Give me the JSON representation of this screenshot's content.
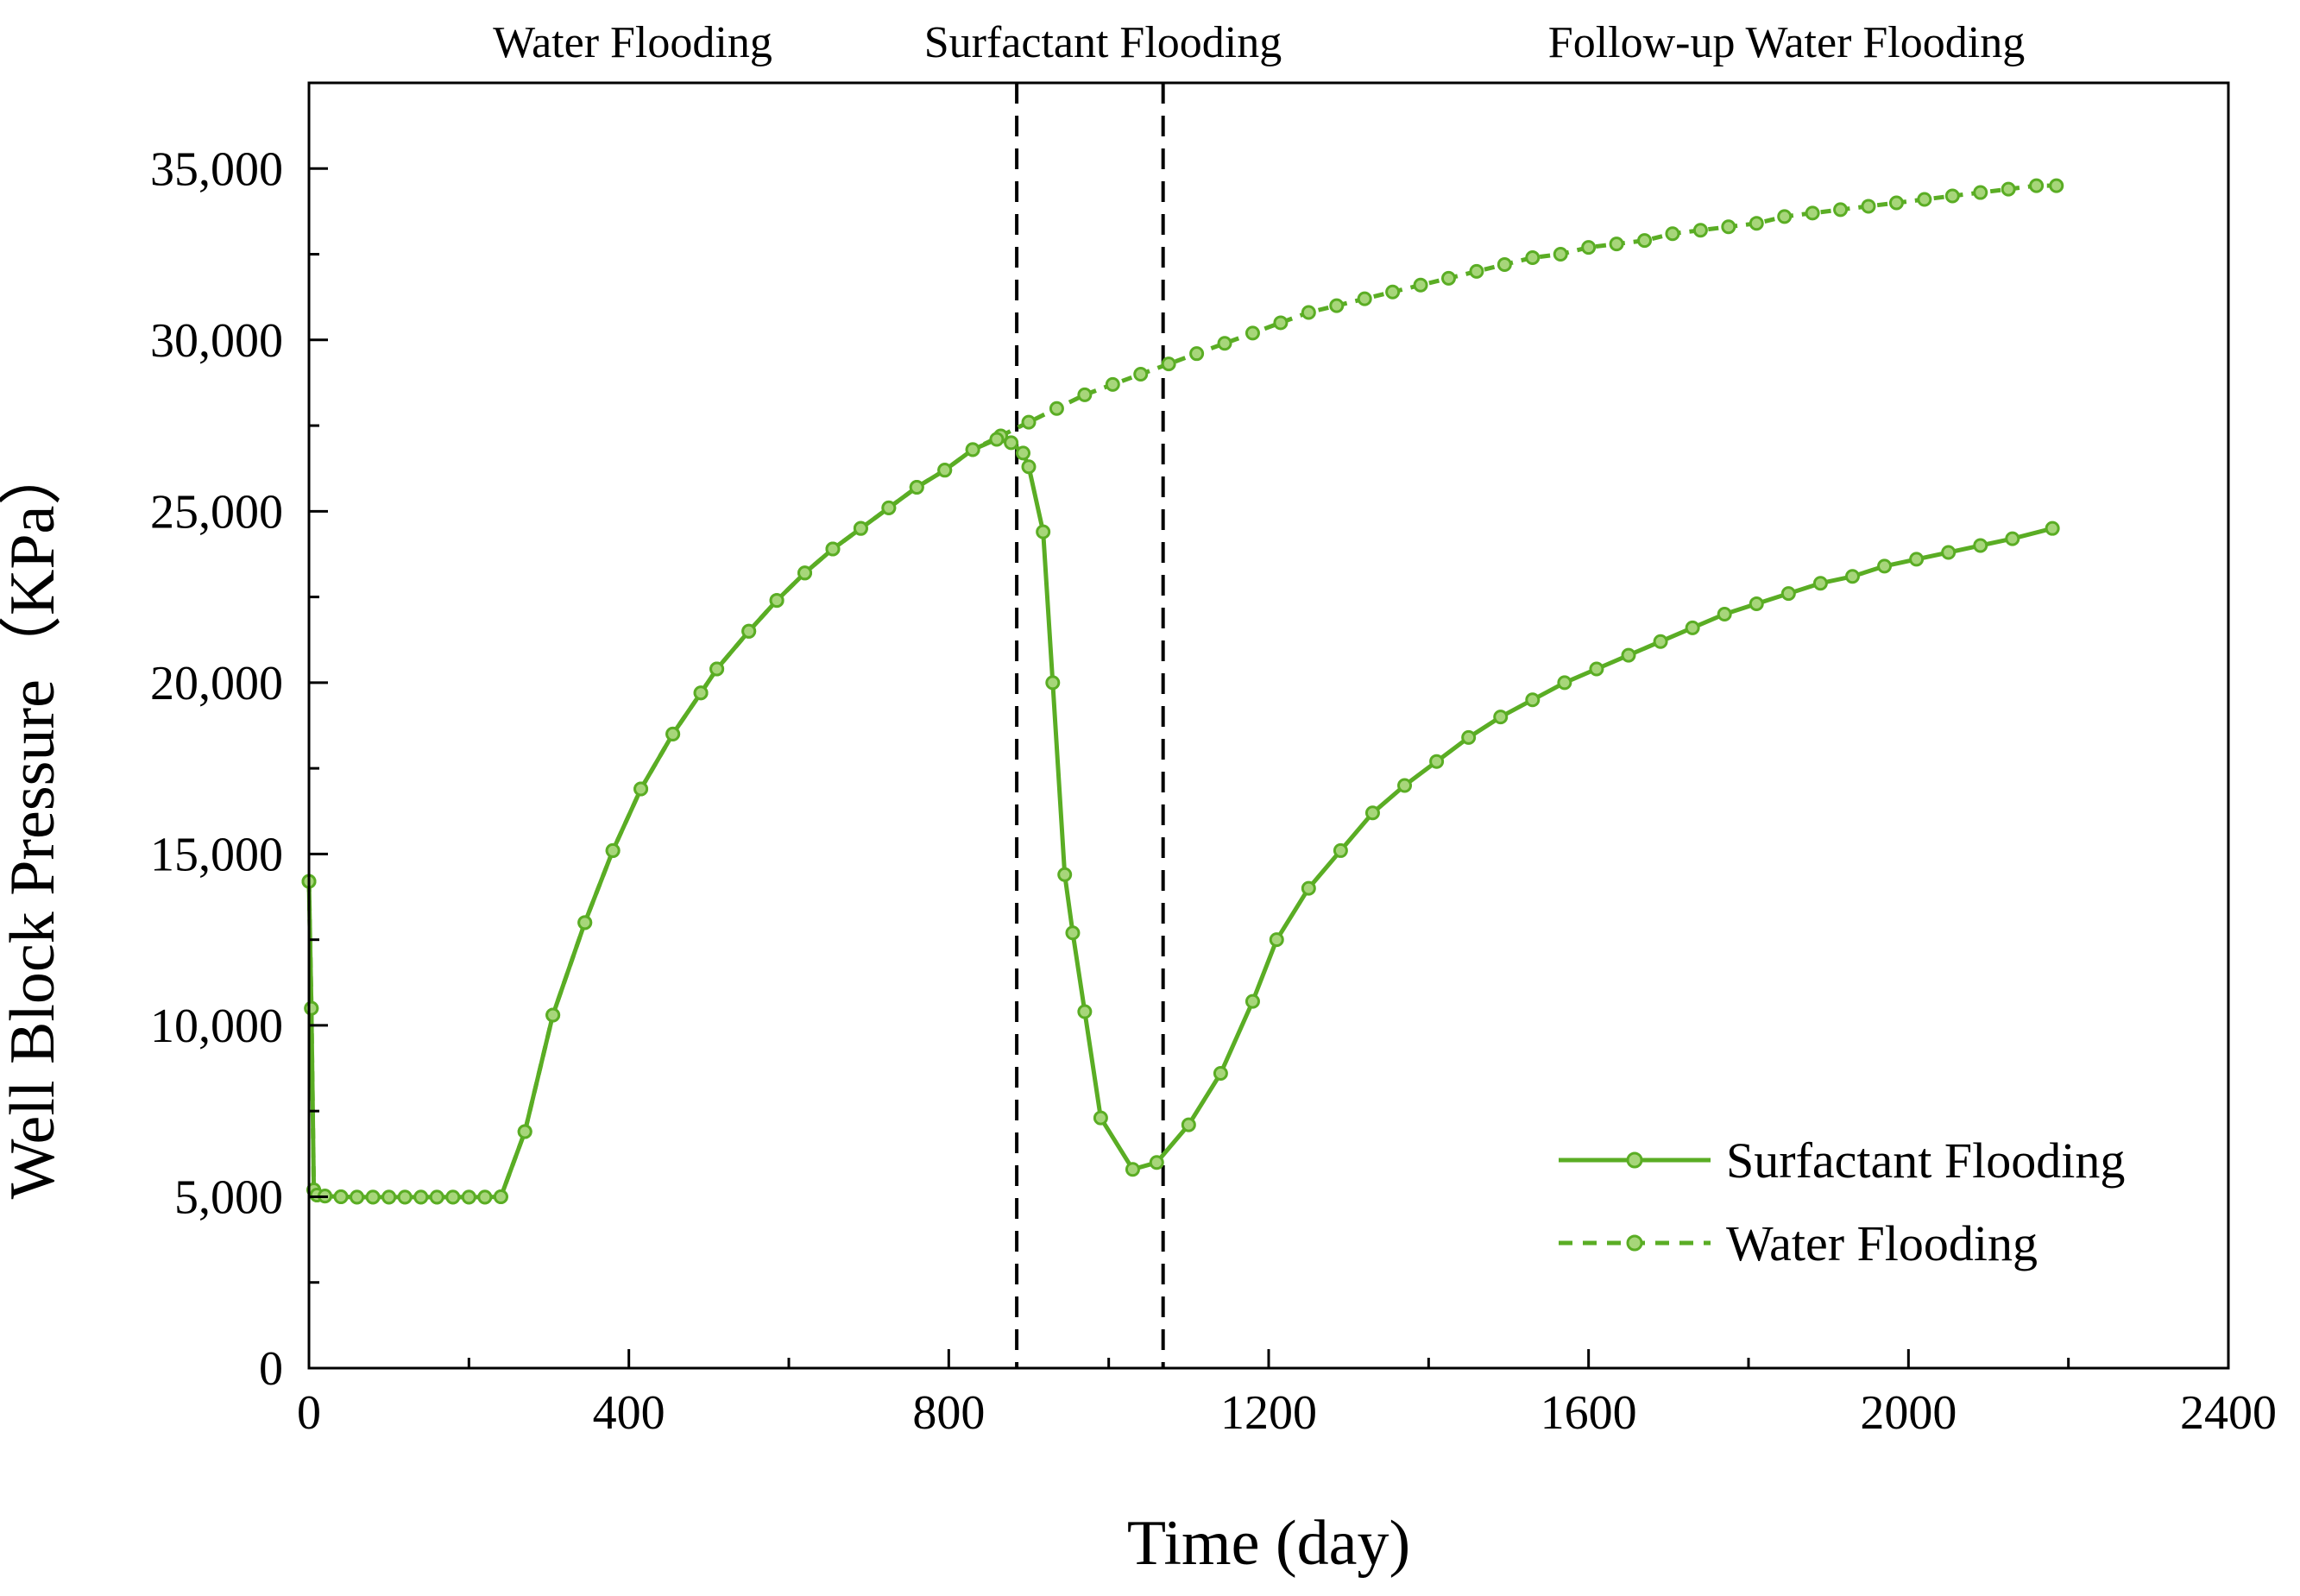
{
  "chart_data": {
    "type": "line",
    "xlabel": "Time (day)",
    "ylabel": "Well Block Pressure（KPa）",
    "xlim": [
      0,
      2400
    ],
    "ylim": [
      0,
      37500
    ],
    "x_ticks": [
      0,
      400,
      800,
      1200,
      1600,
      2000,
      2400
    ],
    "y_ticks": [
      0,
      5000,
      10000,
      15000,
      20000,
      25000,
      30000,
      35000
    ],
    "x_tick_labels": [
      "0",
      "400",
      "800",
      "1200",
      "1600",
      "2000",
      "2400"
    ],
    "y_tick_labels": [
      "0",
      "5,000",
      "10,000",
      "15,000",
      "20,000",
      "25,000",
      "30,000",
      "35,000"
    ],
    "grid": false,
    "legend_position": "bottom-right",
    "phase_boundaries": [
      885,
      1068
    ],
    "phase_labels": [
      "Water Flooding",
      "Surfactant Flooding",
      "Follow-up Water Flooding"
    ],
    "series_color": "#5aad24",
    "series": [
      {
        "name": "Surfactant Flooding",
        "style": "solid",
        "points": [
          [
            0,
            14200
          ],
          [
            3,
            10500
          ],
          [
            6,
            5200
          ],
          [
            10,
            5050
          ],
          [
            20,
            5020
          ],
          [
            40,
            5000
          ],
          [
            60,
            4990
          ],
          [
            80,
            4990
          ],
          [
            100,
            4990
          ],
          [
            120,
            4990
          ],
          [
            140,
            4990
          ],
          [
            160,
            4990
          ],
          [
            180,
            4990
          ],
          [
            200,
            4990
          ],
          [
            220,
            4990
          ],
          [
            240,
            5000
          ],
          [
            270,
            6900
          ],
          [
            305,
            10300
          ],
          [
            345,
            13000
          ],
          [
            380,
            15100
          ],
          [
            415,
            16900
          ],
          [
            455,
            18500
          ],
          [
            490,
            19700
          ],
          [
            510,
            20400
          ],
          [
            550,
            21500
          ],
          [
            585,
            22400
          ],
          [
            620,
            23200
          ],
          [
            655,
            23900
          ],
          [
            690,
            24500
          ],
          [
            725,
            25100
          ],
          [
            760,
            25700
          ],
          [
            795,
            26200
          ],
          [
            830,
            26800
          ],
          [
            860,
            27100
          ],
          [
            878,
            27000
          ],
          [
            893,
            26700
          ],
          [
            900,
            26300
          ],
          [
            918,
            24400
          ],
          [
            930,
            20000
          ],
          [
            945,
            14400
          ],
          [
            955,
            12700
          ],
          [
            970,
            10400
          ],
          [
            990,
            7300
          ],
          [
            1030,
            5800
          ],
          [
            1060,
            6000
          ],
          [
            1100,
            7100
          ],
          [
            1140,
            8600
          ],
          [
            1180,
            10700
          ],
          [
            1210,
            12500
          ],
          [
            1250,
            14000
          ],
          [
            1290,
            15100
          ],
          [
            1330,
            16200
          ],
          [
            1370,
            17000
          ],
          [
            1410,
            17700
          ],
          [
            1450,
            18400
          ],
          [
            1490,
            19000
          ],
          [
            1530,
            19500
          ],
          [
            1570,
            20000
          ],
          [
            1610,
            20400
          ],
          [
            1650,
            20800
          ],
          [
            1690,
            21200
          ],
          [
            1730,
            21600
          ],
          [
            1770,
            22000
          ],
          [
            1810,
            22300
          ],
          [
            1850,
            22600
          ],
          [
            1890,
            22900
          ],
          [
            1930,
            23100
          ],
          [
            1970,
            23400
          ],
          [
            2010,
            23600
          ],
          [
            2050,
            23800
          ],
          [
            2090,
            24000
          ],
          [
            2130,
            24200
          ],
          [
            2180,
            24500
          ]
        ]
      },
      {
        "name": "Water Flooding",
        "style": "dotted",
        "points": [
          [
            0,
            14200
          ],
          [
            3,
            10500
          ],
          [
            6,
            5200
          ],
          [
            10,
            5050
          ],
          [
            20,
            5020
          ],
          [
            40,
            5000
          ],
          [
            60,
            4990
          ],
          [
            80,
            4990
          ],
          [
            100,
            4990
          ],
          [
            120,
            4990
          ],
          [
            140,
            4990
          ],
          [
            160,
            4990
          ],
          [
            180,
            4990
          ],
          [
            200,
            4990
          ],
          [
            220,
            4990
          ],
          [
            240,
            5000
          ],
          [
            270,
            6900
          ],
          [
            305,
            10300
          ],
          [
            345,
            13000
          ],
          [
            380,
            15100
          ],
          [
            415,
            16900
          ],
          [
            455,
            18500
          ],
          [
            490,
            19700
          ],
          [
            510,
            20400
          ],
          [
            550,
            21500
          ],
          [
            585,
            22400
          ],
          [
            620,
            23200
          ],
          [
            655,
            23900
          ],
          [
            690,
            24500
          ],
          [
            725,
            25100
          ],
          [
            760,
            25700
          ],
          [
            795,
            26200
          ],
          [
            830,
            26800
          ],
          [
            865,
            27200
          ],
          [
            900,
            27600
          ],
          [
            935,
            28000
          ],
          [
            970,
            28400
          ],
          [
            1005,
            28700
          ],
          [
            1040,
            29000
          ],
          [
            1075,
            29300
          ],
          [
            1110,
            29600
          ],
          [
            1145,
            29900
          ],
          [
            1180,
            30200
          ],
          [
            1215,
            30500
          ],
          [
            1250,
            30800
          ],
          [
            1285,
            31000
          ],
          [
            1320,
            31200
          ],
          [
            1355,
            31400
          ],
          [
            1390,
            31600
          ],
          [
            1425,
            31800
          ],
          [
            1460,
            32000
          ],
          [
            1495,
            32200
          ],
          [
            1530,
            32400
          ],
          [
            1565,
            32500
          ],
          [
            1600,
            32700
          ],
          [
            1635,
            32800
          ],
          [
            1670,
            32900
          ],
          [
            1705,
            33100
          ],
          [
            1740,
            33200
          ],
          [
            1775,
            33300
          ],
          [
            1810,
            33400
          ],
          [
            1845,
            33600
          ],
          [
            1880,
            33700
          ],
          [
            1915,
            33800
          ],
          [
            1950,
            33900
          ],
          [
            1985,
            34000
          ],
          [
            2020,
            34100
          ],
          [
            2055,
            34200
          ],
          [
            2090,
            34300
          ],
          [
            2125,
            34400
          ],
          [
            2160,
            34500
          ],
          [
            2185,
            34500
          ]
        ]
      }
    ]
  }
}
